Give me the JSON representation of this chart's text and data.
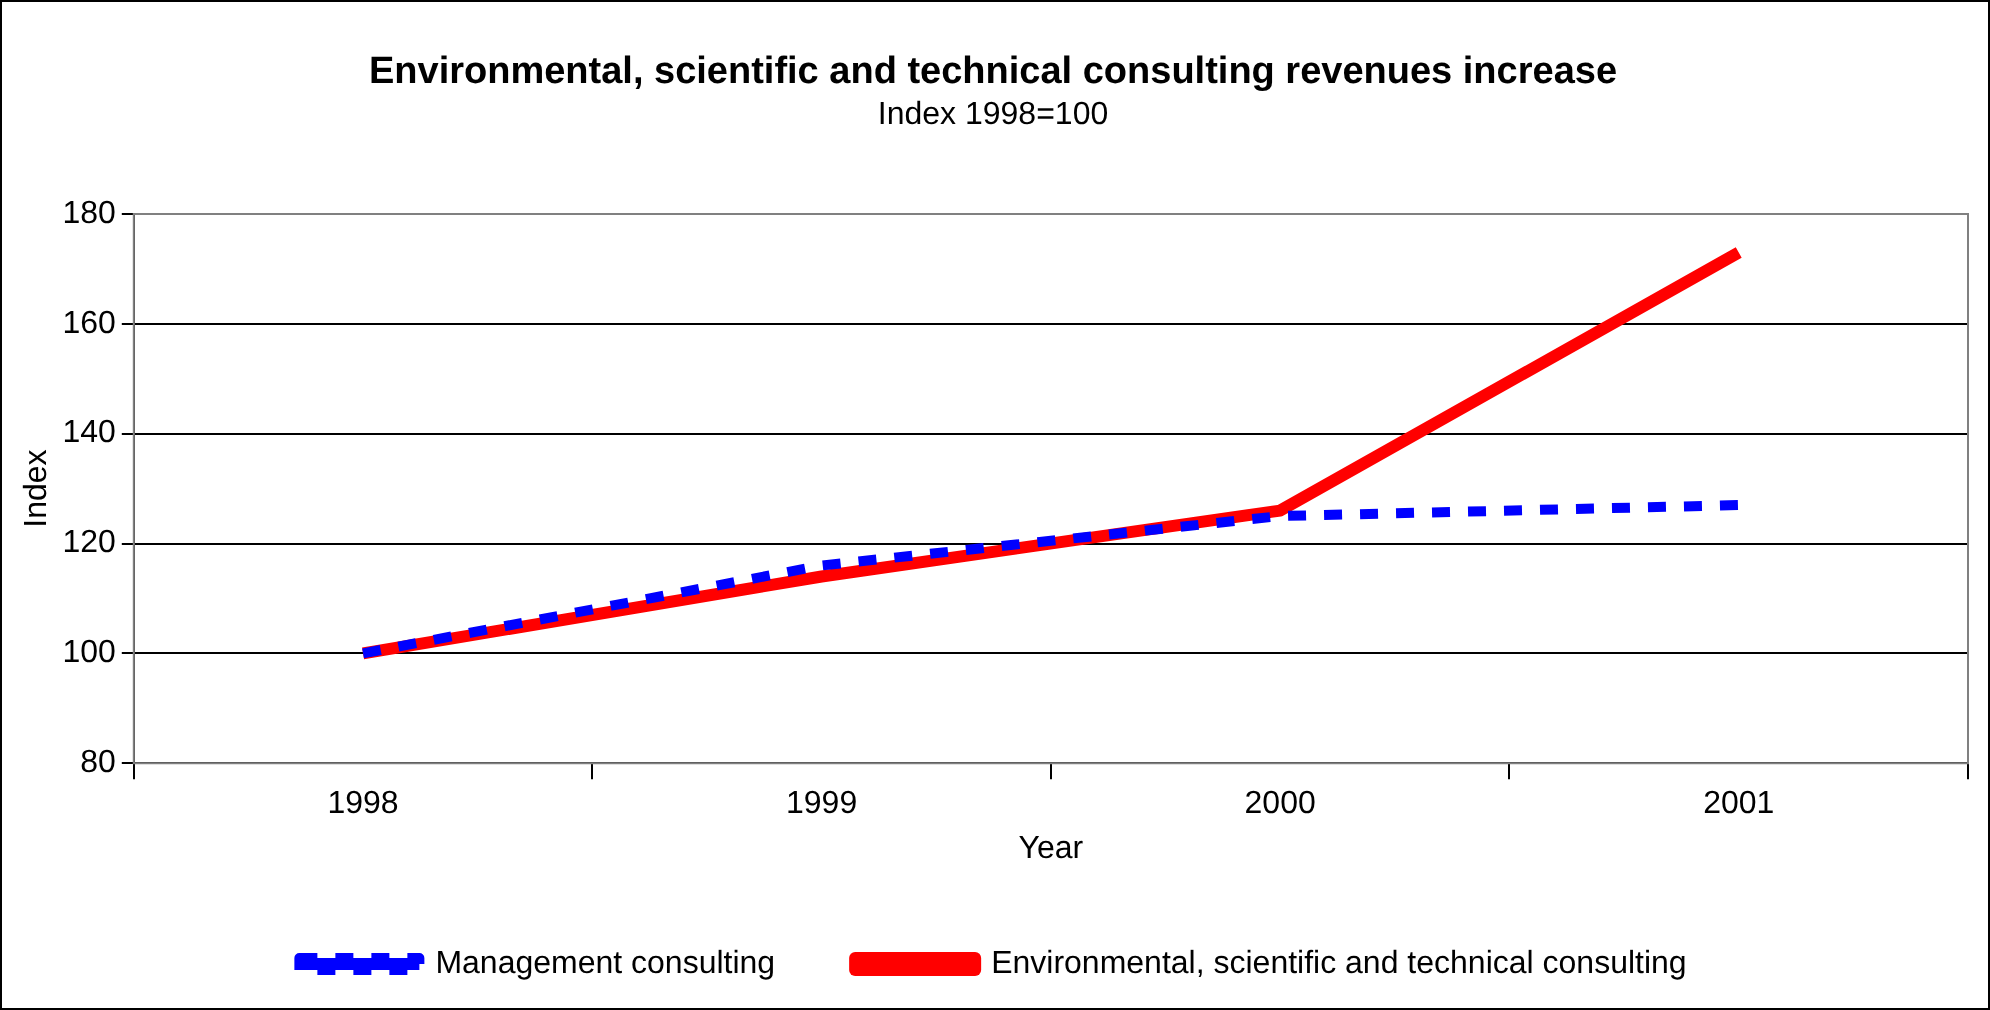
{
  "chart_data": {
    "type": "line",
    "title": "Environmental, scientific and technical consulting revenues increase",
    "subtitle": "Index 1998=100",
    "xlabel": "Year",
    "ylabel": "Index",
    "categories": [
      "1998",
      "1999",
      "2000",
      "2001"
    ],
    "series": [
      {
        "name": "Management consulting",
        "color": "#0000ff",
        "values": [
          100,
          116,
          125,
          127
        ],
        "line_style": "dashed"
      },
      {
        "name": "Environmental, scientific and technical consulting",
        "color": "#ff0000",
        "values": [
          100,
          114,
          126,
          173
        ],
        "line_style": "solid"
      }
    ],
    "ylim": [
      80,
      180
    ],
    "yticks": [
      80,
      100,
      120,
      140,
      160,
      180
    ],
    "grid": "y",
    "legend": "bottom",
    "marker": "none"
  }
}
